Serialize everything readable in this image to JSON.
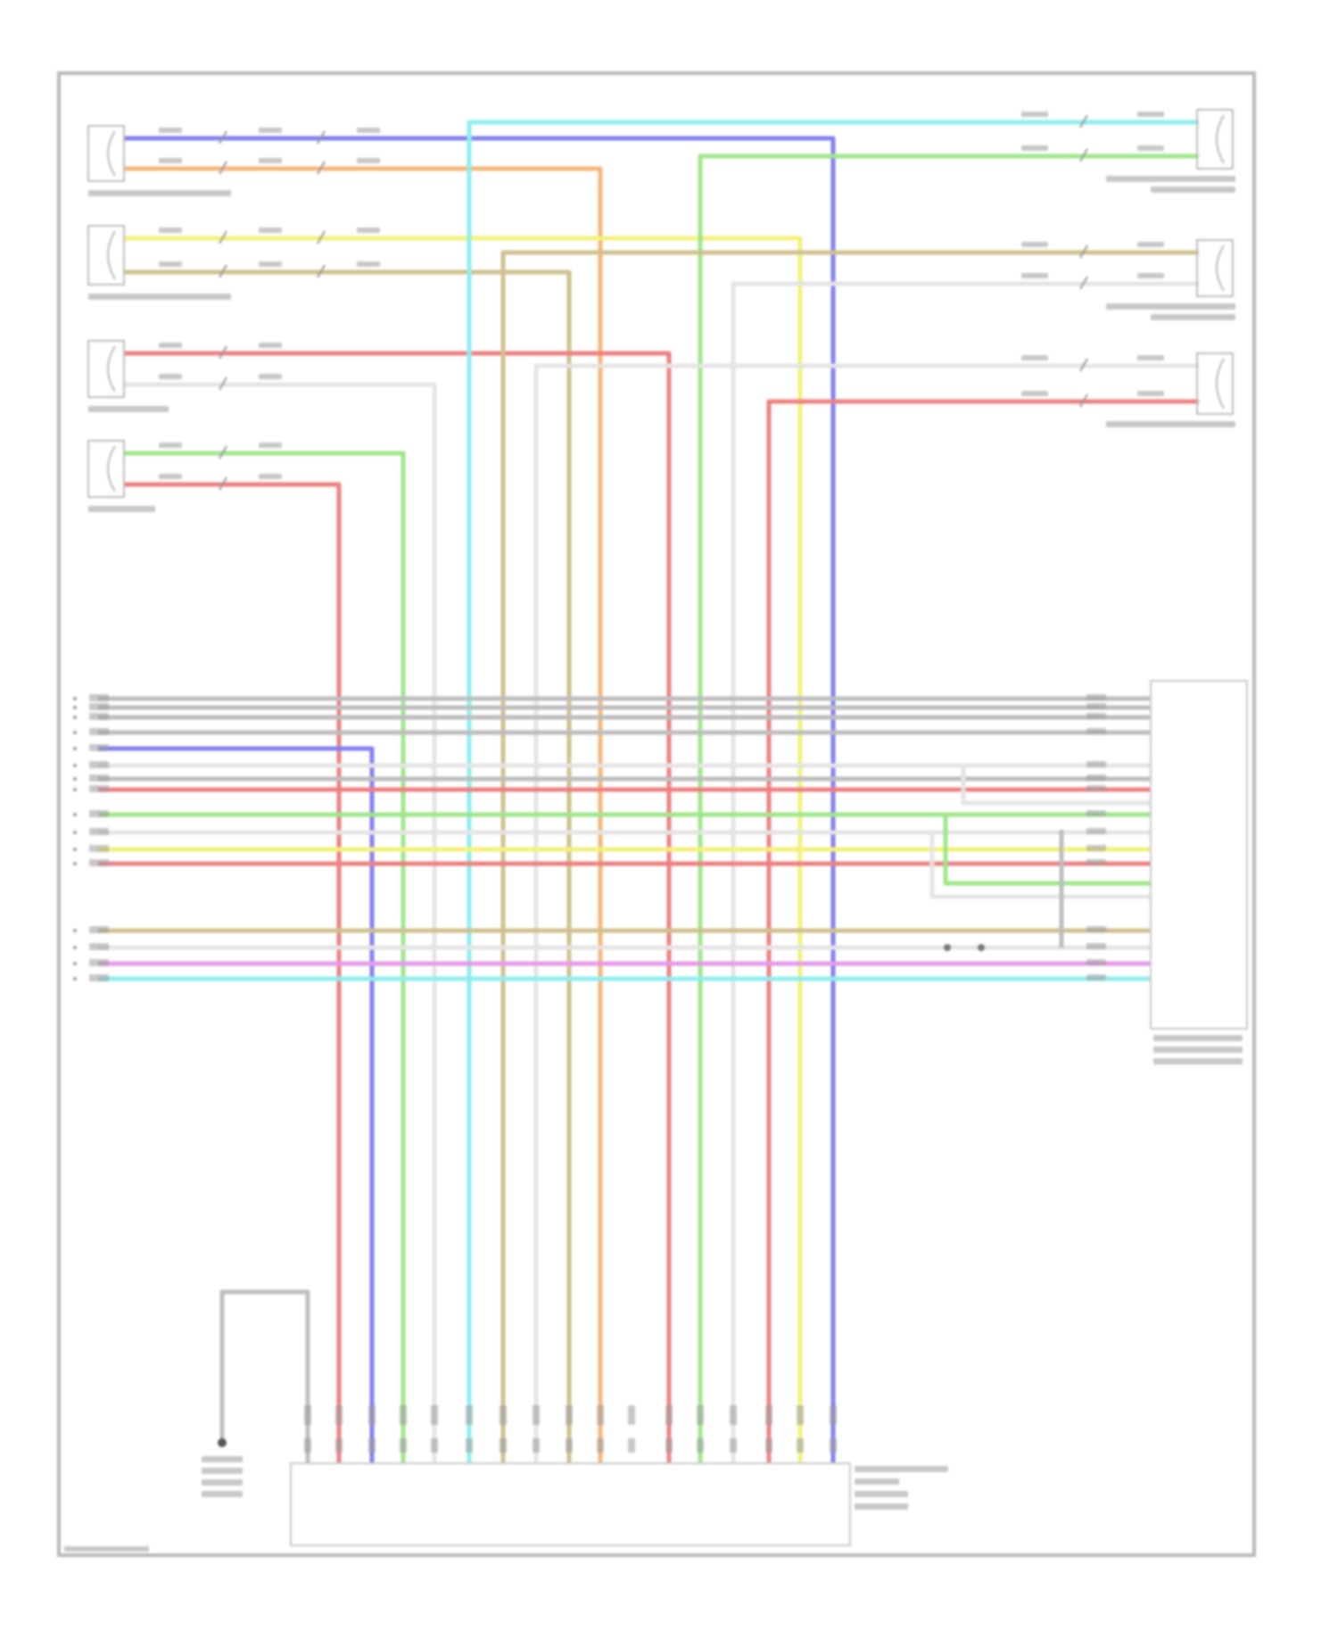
{
  "palette": {
    "blue": "#8080ee",
    "orange": "#f5b57a",
    "yellow": "#f3f27a",
    "tan": "#cfc08e",
    "red": "#ee8080",
    "white": "#e4e4e4",
    "green": "#9ee68a",
    "cyan": "#8eeeee",
    "gray": "#bdbdbd",
    "magenta": "#e59ae8",
    "frame": "#b8b8b8",
    "label": "#9a9a9a"
  },
  "wires": {
    "left_speakers": [
      [
        "blue",
        "orange"
      ],
      [
        "yellow",
        "tan"
      ],
      [
        "red",
        "white"
      ],
      [
        "green",
        "red"
      ]
    ],
    "right_speakers": [
      [
        "cyan",
        "green"
      ],
      [
        "tan",
        "white"
      ],
      [
        "white",
        "red"
      ]
    ],
    "harness_rows": [
      "gray",
      "gray",
      "gray",
      "gray",
      "blue",
      "white",
      "gray",
      "red",
      "green",
      "white",
      "yellow",
      "red",
      "tan",
      "white",
      "magenta",
      "cyan"
    ],
    "connector_drops": [
      "red",
      "blue",
      "green",
      "white",
      "cyan",
      "tan",
      "white",
      "tan",
      "orange",
      "red",
      "green",
      "white",
      "red",
      "yellow",
      "blue"
    ]
  }
}
